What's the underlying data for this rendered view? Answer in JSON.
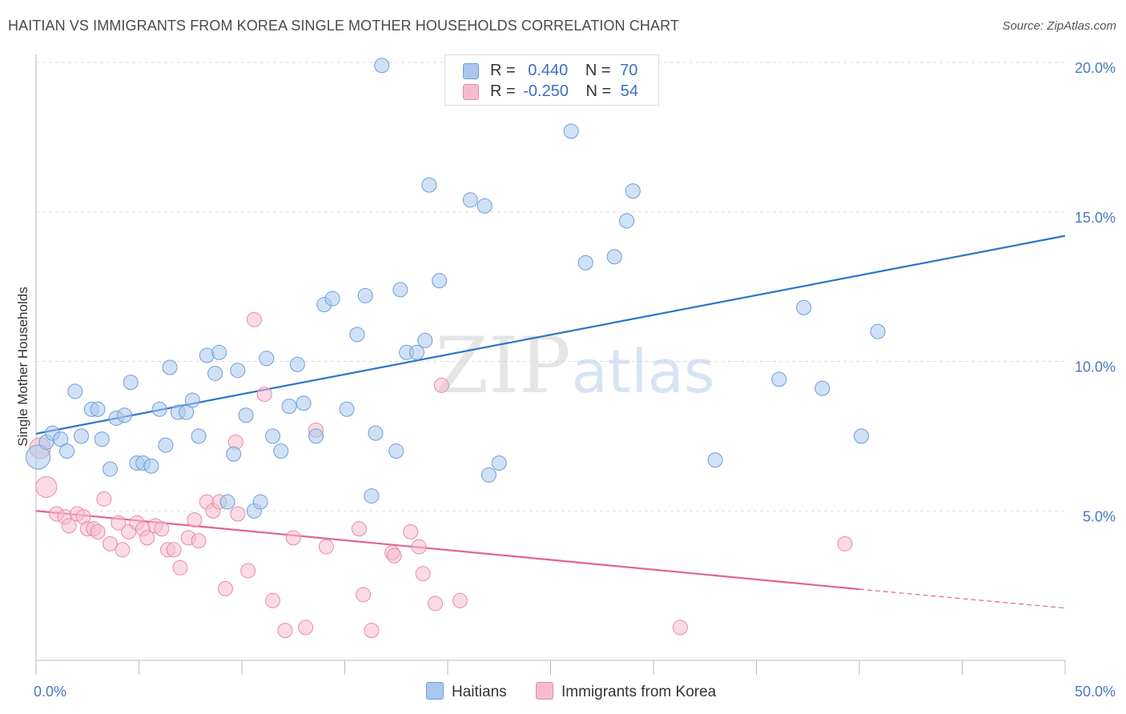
{
  "header": {
    "title": "HAITIAN VS IMMIGRANTS FROM KOREA SINGLE MOTHER HOUSEHOLDS CORRELATION CHART",
    "source": "Source: ZipAtlas.com"
  },
  "watermark": {
    "zip": "ZIP",
    "atlas": "atlas"
  },
  "legend": {
    "rows": [
      {
        "r_label": "R =",
        "r_value": "0.440",
        "n_label": "N =",
        "n_value": "70",
        "color": "#aac8ee"
      },
      {
        "r_label": "R =",
        "r_value": "-0.250",
        "n_label": "N =",
        "n_value": "54",
        "color": "#f6bccd"
      }
    ]
  },
  "bottom_legend": {
    "haitians": "Haitians",
    "korea": "Immigrants from Korea"
  },
  "colors": {
    "blue_fill": "#aac8ee",
    "blue_stroke": "#6f9ed8",
    "blue_line": "#2f73c9",
    "pink_fill": "#f6bccd",
    "pink_stroke": "#e98aa8",
    "pink_line": "#e0648f",
    "tick_text": "#4a78c2",
    "grid": "#dddddd"
  },
  "chart_data": {
    "type": "scatter",
    "title": "HAITIAN VS IMMIGRANTS FROM KOREA SINGLE MOTHER HOUSEHOLDS CORRELATION CHART",
    "xlabel": "",
    "ylabel": "Single Mother Households",
    "xlim": [
      0,
      50
    ],
    "ylim": [
      0,
      20
    ],
    "x_tick_labels": [
      "0.0%",
      "50.0%"
    ],
    "y_ticks": [
      5,
      10,
      15,
      20
    ],
    "y_tick_labels": [
      "5.0%",
      "10.0%",
      "15.0%",
      "20.0%"
    ],
    "grid": true,
    "legend_position": "top-center",
    "series": [
      {
        "name": "Haitians",
        "color": "#aac8ee",
        "points": [
          [
            0.1,
            6.8,
            14
          ],
          [
            0.5,
            7.3,
            8
          ],
          [
            0.8,
            7.6,
            8
          ],
          [
            1.2,
            7.4,
            8
          ],
          [
            1.5,
            7.0,
            8
          ],
          [
            1.9,
            9.0,
            8
          ],
          [
            2.2,
            7.5,
            8
          ],
          [
            2.7,
            8.4,
            8
          ],
          [
            3.0,
            8.4,
            8
          ],
          [
            3.2,
            7.4,
            8
          ],
          [
            3.6,
            6.4,
            8
          ],
          [
            3.9,
            8.1,
            8
          ],
          [
            4.3,
            8.2,
            8
          ],
          [
            4.6,
            9.3,
            8
          ],
          [
            4.9,
            6.6,
            8
          ],
          [
            5.2,
            6.6,
            8
          ],
          [
            5.6,
            6.5,
            8
          ],
          [
            6.0,
            8.4,
            8
          ],
          [
            6.3,
            7.2,
            8
          ],
          [
            6.5,
            9.8,
            8
          ],
          [
            6.9,
            8.3,
            8
          ],
          [
            7.3,
            8.3,
            8
          ],
          [
            7.6,
            8.7,
            8
          ],
          [
            7.9,
            7.5,
            8
          ],
          [
            8.3,
            10.2,
            8
          ],
          [
            8.7,
            9.6,
            8
          ],
          [
            8.9,
            10.3,
            8
          ],
          [
            9.3,
            5.3,
            8
          ],
          [
            9.6,
            6.9,
            8
          ],
          [
            9.8,
            9.7,
            8
          ],
          [
            10.2,
            8.2,
            8
          ],
          [
            10.6,
            5.0,
            8
          ],
          [
            10.9,
            5.3,
            8
          ],
          [
            11.2,
            10.1,
            8
          ],
          [
            11.5,
            7.5,
            8
          ],
          [
            11.9,
            7.0,
            8
          ],
          [
            12.3,
            8.5,
            8
          ],
          [
            12.7,
            9.9,
            8
          ],
          [
            13.0,
            8.6,
            8
          ],
          [
            13.6,
            7.5,
            8
          ],
          [
            14.0,
            11.9,
            8
          ],
          [
            14.4,
            12.1,
            8
          ],
          [
            15.1,
            8.4,
            8
          ],
          [
            15.6,
            10.9,
            8
          ],
          [
            16.0,
            12.2,
            8
          ],
          [
            16.3,
            5.5,
            8
          ],
          [
            16.5,
            7.6,
            8
          ],
          [
            16.8,
            19.9,
            8
          ],
          [
            17.5,
            7.0,
            8
          ],
          [
            17.7,
            12.4,
            8
          ],
          [
            18.0,
            10.3,
            8
          ],
          [
            18.5,
            10.3,
            8
          ],
          [
            18.9,
            10.7,
            8
          ],
          [
            19.1,
            15.9,
            8
          ],
          [
            19.6,
            12.7,
            8
          ],
          [
            21.1,
            15.4,
            8
          ],
          [
            21.8,
            15.2,
            8
          ],
          [
            22.0,
            6.2,
            8
          ],
          [
            22.5,
            6.6,
            8
          ],
          [
            26.0,
            17.7,
            8
          ],
          [
            26.7,
            13.3,
            8
          ],
          [
            28.1,
            13.5,
            8
          ],
          [
            28.7,
            14.7,
            8
          ],
          [
            29.0,
            15.7,
            8
          ],
          [
            33.0,
            6.7,
            8
          ],
          [
            36.1,
            9.4,
            8
          ],
          [
            37.3,
            11.8,
            8
          ],
          [
            38.2,
            9.1,
            8
          ],
          [
            40.1,
            7.5,
            8
          ],
          [
            40.9,
            11.0,
            8
          ]
        ],
        "trend": {
          "from": [
            0,
            7.58
          ],
          "to": [
            50,
            14.2
          ]
        }
      },
      {
        "name": "Immigrants from Korea",
        "color": "#f6bccd",
        "points": [
          [
            0.2,
            7.1,
            12
          ],
          [
            0.5,
            5.8,
            12
          ],
          [
            1.0,
            4.9,
            8
          ],
          [
            1.4,
            4.8,
            8
          ],
          [
            1.6,
            4.5,
            8
          ],
          [
            2.0,
            4.9,
            8
          ],
          [
            2.3,
            4.8,
            8
          ],
          [
            2.5,
            4.4,
            8
          ],
          [
            2.8,
            4.4,
            8
          ],
          [
            3.0,
            4.3,
            8
          ],
          [
            3.3,
            5.4,
            8
          ],
          [
            3.6,
            3.9,
            8
          ],
          [
            4.0,
            4.6,
            8
          ],
          [
            4.2,
            3.7,
            8
          ],
          [
            4.5,
            4.3,
            8
          ],
          [
            4.9,
            4.6,
            8
          ],
          [
            5.2,
            4.4,
            8
          ],
          [
            5.4,
            4.1,
            8
          ],
          [
            5.8,
            4.5,
            8
          ],
          [
            6.1,
            4.4,
            8
          ],
          [
            6.4,
            3.7,
            8
          ],
          [
            6.7,
            3.7,
            8
          ],
          [
            7.0,
            3.1,
            8
          ],
          [
            7.4,
            4.1,
            8
          ],
          [
            7.7,
            4.7,
            8
          ],
          [
            7.9,
            4.0,
            8
          ],
          [
            8.3,
            5.3,
            8
          ],
          [
            8.6,
            5.0,
            8
          ],
          [
            8.9,
            5.3,
            8
          ],
          [
            9.2,
            2.4,
            8
          ],
          [
            9.7,
            7.3,
            8
          ],
          [
            9.8,
            4.9,
            8
          ],
          [
            10.3,
            3.0,
            8
          ],
          [
            10.6,
            11.4,
            8
          ],
          [
            11.1,
            8.9,
            8
          ],
          [
            11.5,
            2.0,
            8
          ],
          [
            12.1,
            1.0,
            8
          ],
          [
            12.5,
            4.1,
            8
          ],
          [
            13.1,
            1.1,
            8
          ],
          [
            13.6,
            7.7,
            8
          ],
          [
            14.1,
            3.8,
            8
          ],
          [
            15.7,
            4.4,
            8
          ],
          [
            15.9,
            2.2,
            8
          ],
          [
            16.3,
            1.0,
            8
          ],
          [
            17.3,
            3.6,
            8
          ],
          [
            17.4,
            3.5,
            8
          ],
          [
            18.2,
            4.3,
            8
          ],
          [
            18.6,
            3.8,
            8
          ],
          [
            18.8,
            2.9,
            8
          ],
          [
            19.4,
            1.9,
            8
          ],
          [
            19.7,
            9.2,
            8
          ],
          [
            20.6,
            2.0,
            8
          ],
          [
            31.3,
            1.1,
            8
          ],
          [
            39.3,
            3.9,
            8
          ]
        ],
        "trend": {
          "from": [
            0,
            5.0
          ],
          "to": [
            40,
            2.38
          ]
        },
        "trend_dashed": {
          "from": [
            40,
            2.38
          ],
          "to": [
            50,
            1.75
          ]
        }
      }
    ]
  }
}
